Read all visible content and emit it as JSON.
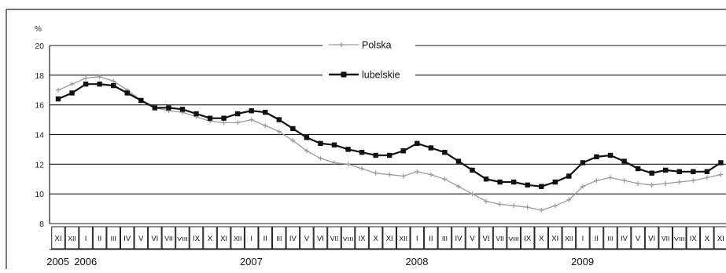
{
  "chart_data": {
    "type": "line",
    "ylabel": "%",
    "ylim": [
      8,
      20
    ],
    "yticks": [
      8,
      10,
      12,
      14,
      16,
      18,
      20
    ],
    "grid": true,
    "legend_placement": "top-center",
    "month_labels": [
      "XI",
      "XII",
      "I",
      "II",
      "III",
      "IV",
      "V",
      "VI",
      "VII",
      "VIII",
      "IX",
      "X",
      "XI",
      "XII",
      "I",
      "II",
      "III",
      "IV",
      "V",
      "VI",
      "VII",
      "VIII",
      "IX",
      "X",
      "XI",
      "XII",
      "I",
      "II",
      "III",
      "IV",
      "V",
      "VI",
      "VII",
      "VIII",
      "IX",
      "X",
      "XI",
      "XII",
      "I",
      "II",
      "III",
      "IV",
      "V",
      "VI",
      "VII",
      "VIII",
      "IX",
      "X",
      "XI"
    ],
    "year_labels": [
      {
        "label": "2005",
        "month_index": 0
      },
      {
        "label": "2006",
        "month_index": 2
      },
      {
        "label": "2007",
        "month_index": 14
      },
      {
        "label": "2008",
        "month_index": 26
      },
      {
        "label": "2009",
        "month_index": 38
      }
    ],
    "series": [
      {
        "name": "Polska",
        "color": "#9a9a9a",
        "marker": "plus",
        "values": [
          17.0,
          17.4,
          17.8,
          17.9,
          17.6,
          17.0,
          16.3,
          15.8,
          15.6,
          15.5,
          15.2,
          14.9,
          14.8,
          14.8,
          15.0,
          14.6,
          14.2,
          13.6,
          12.9,
          12.4,
          12.1,
          12.0,
          11.7,
          11.4,
          11.3,
          11.2,
          11.5,
          11.3,
          11.0,
          10.5,
          10.0,
          9.5,
          9.3,
          9.2,
          9.1,
          8.9,
          9.2,
          9.6,
          10.5,
          10.9,
          11.1,
          10.9,
          10.7,
          10.6,
          10.7,
          10.8,
          10.9,
          11.1,
          11.3
        ]
      },
      {
        "name": "lubelskie",
        "color": "#111111",
        "marker": "square",
        "values": [
          16.4,
          16.8,
          17.4,
          17.4,
          17.3,
          16.8,
          16.3,
          15.8,
          15.8,
          15.7,
          15.4,
          15.1,
          15.1,
          15.4,
          15.6,
          15.5,
          15.0,
          14.4,
          13.8,
          13.4,
          13.3,
          13.0,
          12.8,
          12.6,
          12.6,
          12.9,
          13.4,
          13.1,
          12.8,
          12.2,
          11.6,
          11.0,
          10.8,
          10.8,
          10.6,
          10.5,
          10.8,
          11.2,
          12.1,
          12.5,
          12.6,
          12.2,
          11.7,
          11.4,
          11.6,
          11.5,
          11.5,
          11.5,
          12.1
        ]
      }
    ]
  }
}
